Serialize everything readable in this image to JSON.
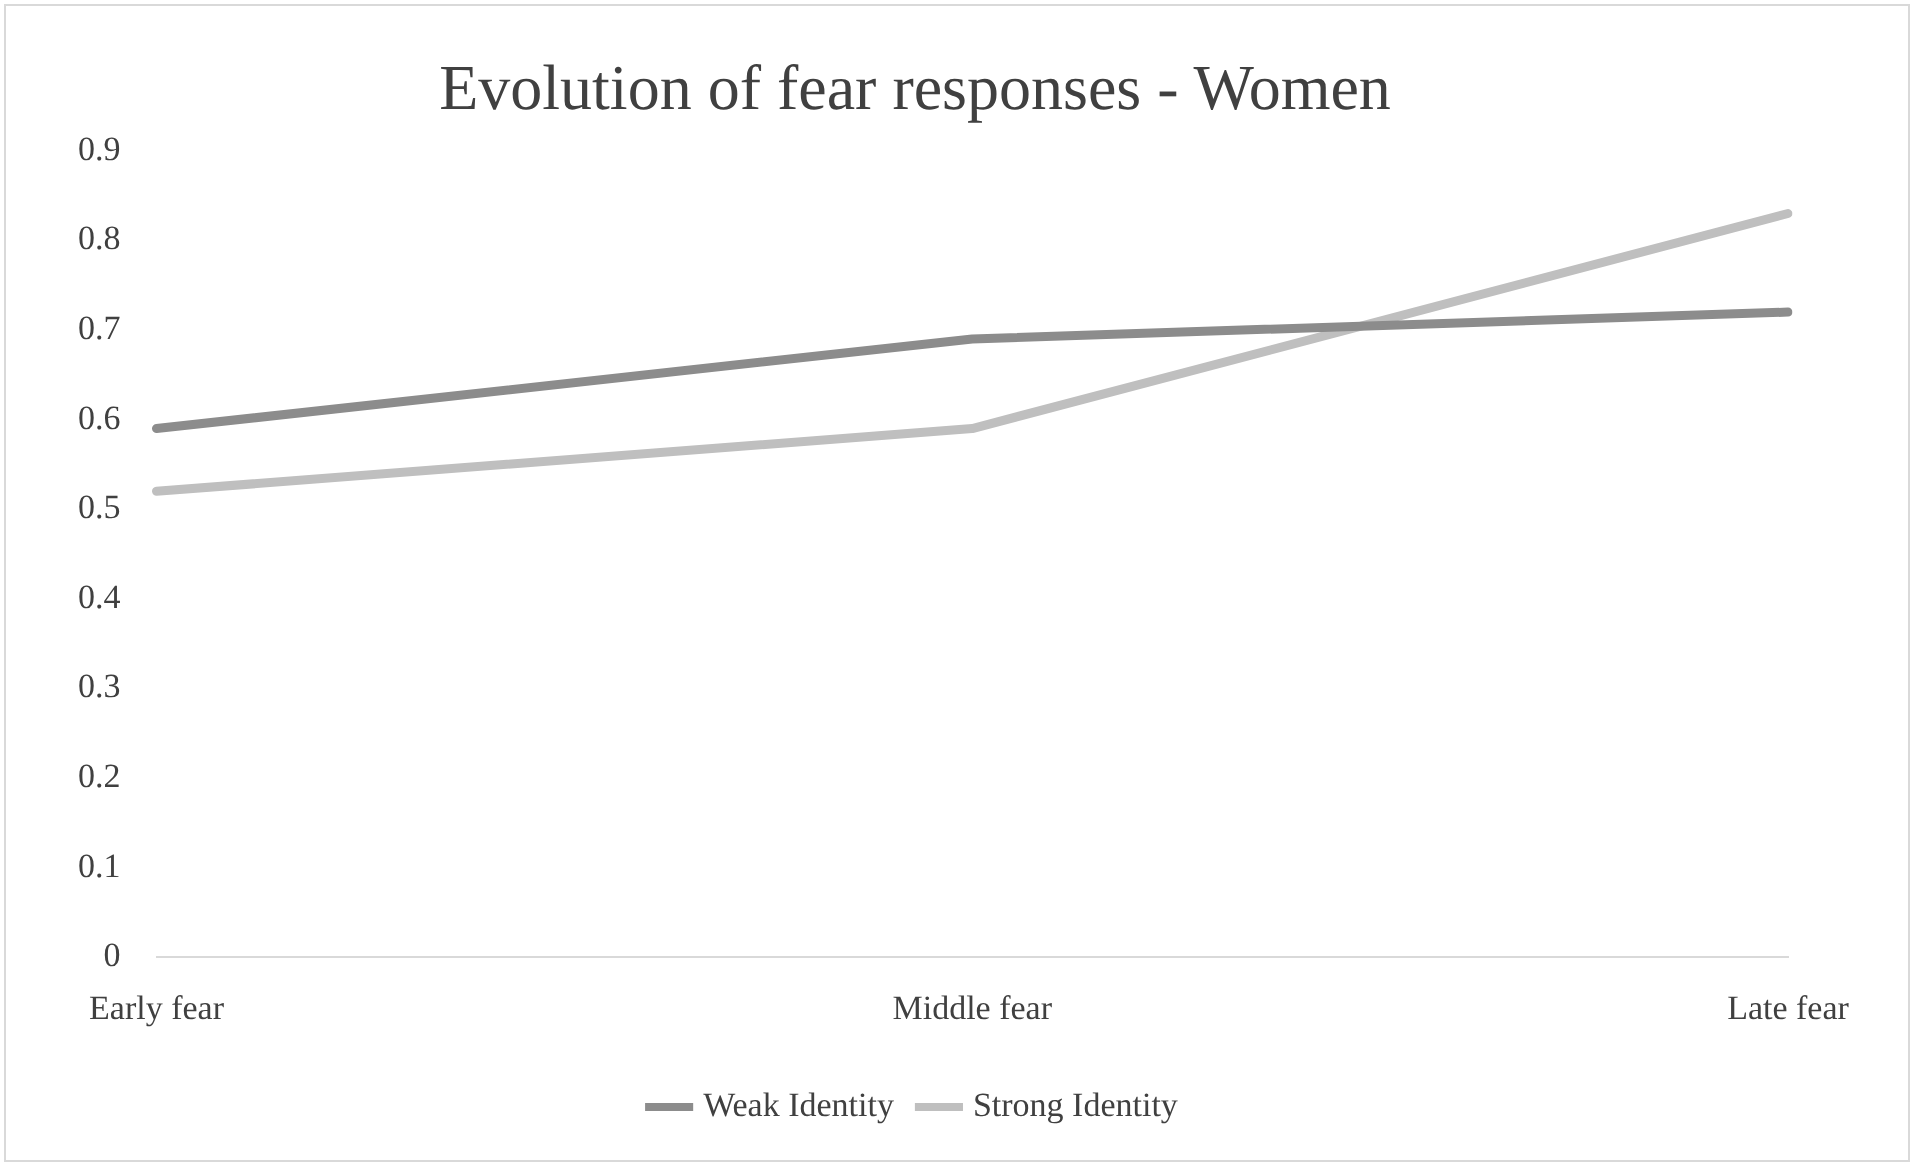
{
  "chart_data": {
    "type": "line",
    "title": "Evolution of fear responses - Women",
    "categories": [
      "Early fear",
      "Middle fear",
      "Late fear"
    ],
    "series": [
      {
        "name": "Weak Identity",
        "color": "#8c8c8c",
        "values": [
          0.59,
          0.69,
          0.72
        ]
      },
      {
        "name": "Strong Identity",
        "color": "#bfbfbf",
        "values": [
          0.52,
          0.59,
          0.83
        ]
      }
    ],
    "ylim": [
      0,
      0.9
    ],
    "yticks": [
      0,
      0.1,
      0.2,
      0.3,
      0.4,
      0.5,
      0.6,
      0.7,
      0.8,
      0.9
    ],
    "grid": false,
    "legend": "bottom",
    "marker": "none",
    "line_style": "solid"
  }
}
